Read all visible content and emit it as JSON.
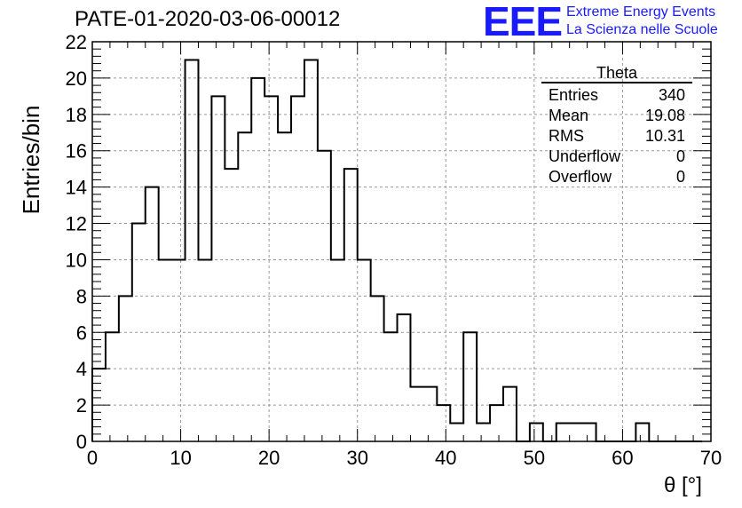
{
  "title": "PATE-01-2020-03-06-00012",
  "logo": {
    "mark": "EEE",
    "line1": "Extreme Energy Events",
    "line2": "La Scienza nelle Scuole",
    "color": "#1a1aff"
  },
  "stats": {
    "name": "Theta",
    "rows": [
      {
        "label": "Entries",
        "value": "340"
      },
      {
        "label": "Mean",
        "value": "19.08"
      },
      {
        "label": "RMS",
        "value": "10.31"
      },
      {
        "label": "Underflow",
        "value": "0"
      },
      {
        "label": "Overflow",
        "value": "0"
      }
    ]
  },
  "chart_data": {
    "type": "bar",
    "histogram": true,
    "xlabel": "θ [°]",
    "ylabel": "Entries/bin",
    "xlim": [
      0,
      70
    ],
    "ylim": [
      0,
      22
    ],
    "grid": true,
    "legend_position": "top-right",
    "bin_edges": [
      0,
      1.5,
      3,
      4.5,
      6,
      7.5,
      9,
      10.5,
      12,
      13.5,
      15,
      16.5,
      18,
      19.5,
      21,
      22.5,
      24,
      25.5,
      27,
      28.5,
      30,
      31.5,
      33,
      34.5,
      36,
      37.5,
      39,
      40.5,
      42,
      43.5,
      45,
      46.5,
      48,
      49.5,
      51,
      52.5,
      54,
      55.5,
      57,
      58.5,
      60,
      61.5,
      63,
      64.5,
      66,
      67.5,
      69
    ],
    "values": [
      4,
      6,
      8,
      12,
      14,
      10,
      10,
      21,
      10,
      19,
      15,
      17,
      20,
      19,
      17,
      19,
      21,
      16,
      10,
      15,
      10,
      8,
      6,
      7,
      3,
      3,
      2,
      1,
      6,
      1,
      2,
      3,
      0,
      1,
      0,
      1,
      1,
      1,
      0,
      0,
      0,
      1,
      0,
      0,
      0,
      0
    ],
    "xticks": [
      "0",
      "10",
      "20",
      "30",
      "40",
      "50",
      "60",
      "70"
    ],
    "yticks": [
      "0",
      "2",
      "4",
      "6",
      "8",
      "10",
      "12",
      "14",
      "16",
      "18",
      "20",
      "22"
    ]
  }
}
